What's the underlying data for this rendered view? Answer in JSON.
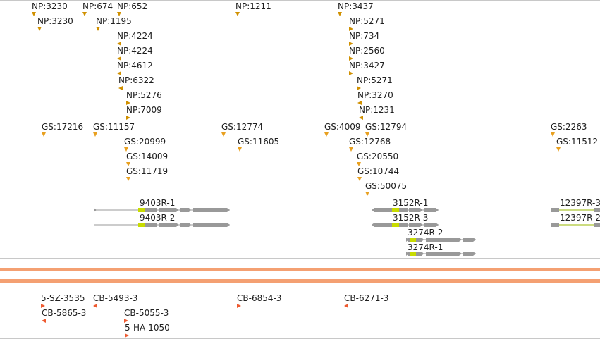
{
  "np_track": {
    "features": [
      {
        "label": "NP:3230",
        "dir": "down"
      },
      {
        "label": "NP:3230",
        "dir": "down"
      },
      {
        "label": "NP:674",
        "dir": "down"
      },
      {
        "label": "NP:1195",
        "dir": "down"
      },
      {
        "label": "NP:652",
        "dir": "down"
      },
      {
        "label": "NP:4224",
        "dir": "left"
      },
      {
        "label": "NP:4224",
        "dir": "left"
      },
      {
        "label": "NP:4612",
        "dir": "left"
      },
      {
        "label": "NP:6322",
        "dir": "left"
      },
      {
        "label": "NP:5276",
        "dir": "right"
      },
      {
        "label": "NP:7009",
        "dir": "right"
      },
      {
        "label": "NP:1211",
        "dir": "down"
      },
      {
        "label": "NP:3437",
        "dir": "down"
      },
      {
        "label": "NP:5271",
        "dir": "right"
      },
      {
        "label": "NP:734",
        "dir": "right"
      },
      {
        "label": "NP:2560",
        "dir": "right"
      },
      {
        "label": "NP:3427",
        "dir": "right"
      },
      {
        "label": "NP:5271",
        "dir": "right"
      },
      {
        "label": "NP:3270",
        "dir": "left"
      },
      {
        "label": "NP:1231",
        "dir": "left"
      }
    ]
  },
  "gs_track": {
    "features": [
      {
        "label": "GS:17216"
      },
      {
        "label": "GS:11157"
      },
      {
        "label": "GS:20999"
      },
      {
        "label": "GS:14009"
      },
      {
        "label": "GS:11719"
      },
      {
        "label": "GS:12774"
      },
      {
        "label": "GS:11605"
      },
      {
        "label": "GS:4009"
      },
      {
        "label": "GS:12794"
      },
      {
        "label": "GS:12768"
      },
      {
        "label": "GS:20550"
      },
      {
        "label": "GS:10744"
      },
      {
        "label": "GS:50075"
      },
      {
        "label": "GS:2263"
      },
      {
        "label": "GS:11512"
      }
    ]
  },
  "gene_track": {
    "genes": [
      {
        "label": "9403R-1"
      },
      {
        "label": "9403R-2"
      },
      {
        "label": "3152R-1"
      },
      {
        "label": "3152R-3"
      },
      {
        "label": "3274R-2"
      },
      {
        "label": "3274R-1"
      },
      {
        "label": "12397R-3"
      },
      {
        "label": "12397R-2"
      }
    ]
  },
  "cb_track": {
    "features": [
      {
        "label": "5-SZ-3535"
      },
      {
        "label": "CB-5865-3"
      },
      {
        "label": "CB-5493-3"
      },
      {
        "label": "CB-5055-3"
      },
      {
        "label": "5-HA-1050"
      },
      {
        "label": "CB-6854-3"
      },
      {
        "label": "CB-6271-3"
      }
    ]
  },
  "colors": {
    "np_marker": "#d09000",
    "gs_marker": "#e8a020",
    "cb_marker": "#ee5a30",
    "band": "#f4a072",
    "gene_body": "#999999",
    "gene_highlight": "#c8dc00"
  }
}
